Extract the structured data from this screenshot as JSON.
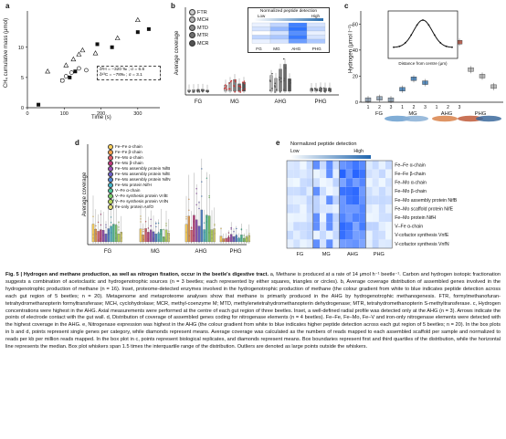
{
  "panels": {
    "a": {
      "label": "a",
      "xlabel": "Time (s)",
      "ylabel": "CH₄ cumulative mass (μmol)",
      "xticks": [
        "0",
        "100",
        "200",
        "300"
      ],
      "yticks": [
        "0",
        "5",
        "10"
      ],
      "inset_line1": "δ²H = −320 ‰ ; σ = 6.6",
      "inset_line2": "δ¹³C = −78‰ ; σ = 3.1",
      "chart_data": {
        "type": "scatter",
        "xlim": [
          0,
          360
        ],
        "ylim": [
          0,
          16
        ],
        "series": [
          {
            "marker": "triangle",
            "x": [
              55,
              105,
              125,
              140,
              150,
              185,
              245,
              300
            ],
            "y": [
              6.0,
              7.0,
              8.0,
              8.8,
              9.5,
              9.0,
              11.5,
              14.5
            ]
          },
          {
            "marker": "square",
            "x": [
              30,
              95,
              115,
              130,
              190,
              230,
              300,
              330
            ],
            "y": [
              0.5,
              4.5,
              5.0,
              6.0,
              10.5,
              10.0,
              12.5,
              13.0
            ]
          },
          {
            "marker": "circle",
            "x": [
              95,
              105,
              120,
              140,
              160,
              195
            ],
            "y": [
              4.5,
              5.2,
              5.8,
              6.5,
              6.2,
              6.0
            ]
          }
        ]
      }
    },
    "b": {
      "label": "b",
      "ylabel": "Average coverage",
      "legend": [
        "FTR",
        "MCH",
        "MTD",
        "MTR",
        "MCR"
      ],
      "legend_colors": [
        "#c8c8c8",
        "#b5b5b5",
        "#8a8a8a",
        "#6e6e6e",
        "#525252"
      ],
      "groups": [
        "FG",
        "MG",
        "AHG",
        "PHG"
      ],
      "inset_title": "Normalized peptide detection",
      "inset_low": "Low",
      "inset_high": "High",
      "inset_cols": [
        "FG",
        "MG",
        "AHG",
        "PHG"
      ]
    },
    "c": {
      "label": "c",
      "ylabel": "Hydrogen (μmol l⁻¹)",
      "yticks": [
        "0",
        "20",
        "40",
        "60"
      ],
      "xticks": [
        "1",
        "2",
        "3",
        "1",
        "2",
        "3",
        "1",
        "2",
        "3"
      ],
      "groups": [
        "FG",
        "MG",
        "AHG",
        "PHG"
      ],
      "inset_xlabel": "Distance from centre (μm)",
      "inset_ylabel": "Hydrogen (μmol l⁻¹)"
    },
    "d": {
      "label": "d",
      "ylabel": "Average coverage",
      "groups": [
        "FG",
        "MG",
        "AHG",
        "PHG"
      ],
      "legend": [
        "Fe–Fe α-chain",
        "Fe–Fe β-chain",
        "Fe–Mo α-chain",
        "Fe–Mo β-chain",
        "Fe–Mo assembly protein NifB",
        "Fe–Mo assembly protein NifE",
        "Fe–Mo assembly protein NifN",
        "Fe–Mo protein NifH",
        "V–Fe α-chain",
        "V–Fe synthesis protein VnfE",
        "V–Fe synthesis protein VnfN",
        "Fe-only protein AnfO"
      ],
      "colors": [
        "#ffd35a",
        "#f6a24a",
        "#e45b6b",
        "#c0367a",
        "#9b4db8",
        "#6d5fc7",
        "#4f86d4",
        "#45b7c9",
        "#4cc59a",
        "#7fd46a",
        "#b9d95c",
        "#e8e27a"
      ]
    },
    "e": {
      "label": "e",
      "title": "Normalized peptide detection",
      "low": "Low",
      "high": "High",
      "cols": [
        "FG",
        "MG",
        "AHG",
        "PHG"
      ],
      "rows": [
        "Fe–Fe α-chain",
        "Fe–Fe β-chain",
        "Fe–Mo α-chain",
        "Fe–Mo β-chain",
        "Fe–Mo assembly protein NifB",
        "Fe–Mo scaffold protein NifE",
        "Fe–Mo protein NifH",
        "V–Fe α-chain",
        "V-cofactor synthesis VnfE",
        "V-cofactor synthesis VnfN"
      ]
    }
  },
  "caption": {
    "title": "Fig. 5 | Hydrogen and methane production, as well as nitrogen fixation, occur in the beetle's digestive tract.",
    "body": "a, Methane is produced at a rate of 14 μmol h⁻¹ beetle⁻¹. Carbon and hydrogen isotopic fractionation suggests a combination of acetoclastic and hydrogenotrophic sources (n = 3 beetles; each represented by either squares, triangles or circles). b, Average coverage distribution of assembled genes involved in the hydrogenotrophic production of methane (n = 16). Inset, proteome-detected enzymes involved in the hydrogenotrophic production of methane (the colour gradient from white to blue indicates peptide detection across each gut region of 5 beetles; n = 20). Metagenome and metaproteome analyses show that methane is primarily produced in the AHG by hydrogenotrophic methanogenesis. FTR, formylmethanofuran-tetrahydromethanopterin formyltransferase; MCH, cyclohydrolase; MCR, methyl-coenzyme M; MTD, methylenetetrahydromethanopterin dehydrogenase; MTR, tetrahydromethanopterin S-methyltransferase. c, Hydrogen concentrations were highest in the AHG. Axial measurements were performed at the centre of each gut region of three beetles. Inset, a well-defined radial profile was detected only at the AHG (n = 3). Arrows indicate the points of electrode contact with the gut wall. d, Distribution of coverage of assembled genes coding for nitrogenase elements (n = 4 beetles). Fe–Fe, Fe–Mo, Fe–V and iron-only nitrogenase elements were detected with the highest coverage in the AHG. e, Nitrogenase expression was highest in the AHG (the colour gradient from white to blue indicates higher peptide detection across each gut region of 5 beetles; n = 20). In the box plots in b and d, points represent single genes per category, while diamonds represent means. Average coverage was calculated as the numbers of reads mapped to each assembled scaffold per sample and normalized to reads per kb per million reads mapped. In the box plot in c, points represent biological replicates, and diamonds represent means. Box boundaries represent first and third quartiles of the distribution, while the horizontal line represents the median. Box plot whiskers span 1.5 times the interquartile range of the distribution. Outliers are denoted as large points outside the whiskers."
  }
}
